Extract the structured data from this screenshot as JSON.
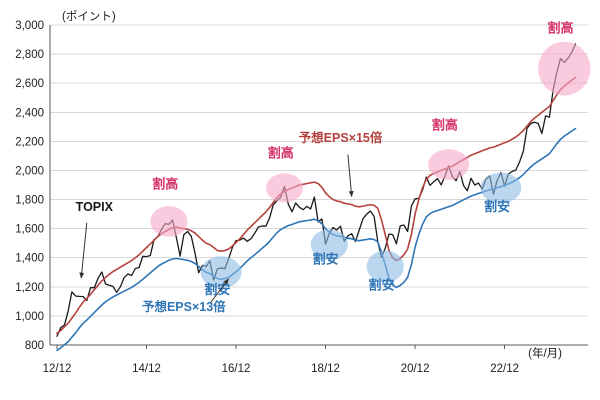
{
  "chart_data": {
    "type": "line",
    "title": "",
    "y_unit_label": "(ポイント)",
    "x_unit_label": "(年/月)",
    "x_start": "12/12",
    "frequency": "monthly",
    "ylim": [
      800,
      3000
    ],
    "xlim_months": [
      0,
      141
    ],
    "grid": "horizontal",
    "legend_position": "none",
    "yticks": [
      {
        "v": 800,
        "label": "800"
      },
      {
        "v": 1000,
        "label": "1,000"
      },
      {
        "v": 1200,
        "label": "1,200"
      },
      {
        "v": 1400,
        "label": "1,400"
      },
      {
        "v": 1600,
        "label": "1,600"
      },
      {
        "v": 1800,
        "label": "1,800"
      },
      {
        "v": 2000,
        "label": "2,000"
      },
      {
        "v": 2200,
        "label": "2,200"
      },
      {
        "v": 2400,
        "label": "2,400"
      },
      {
        "v": 2600,
        "label": "2,600"
      },
      {
        "v": 2800,
        "label": "2,800"
      },
      {
        "v": 3000,
        "label": "3,000"
      }
    ],
    "xticks": [
      {
        "m": 0,
        "label": "12/12"
      },
      {
        "m": 24,
        "label": "14/12"
      },
      {
        "m": 48,
        "label": "16/12"
      },
      {
        "m": 72,
        "label": "18/12"
      },
      {
        "m": 96,
        "label": "20/12"
      },
      {
        "m": 120,
        "label": "22/12"
      }
    ],
    "series": [
      {
        "id": "topix",
        "name": "TOPIX",
        "color": "#1a1a1a",
        "width": 1.3,
        "values": [
          860,
          919,
          938,
          1035,
          1165,
          1136,
          1134,
          1133,
          1106,
          1194,
          1194,
          1258,
          1302,
          1220,
          1211,
          1203,
          1162,
          1201,
          1263,
          1289,
          1278,
          1326,
          1333,
          1410,
          1408,
          1415,
          1524,
          1543,
          1593,
          1634,
          1630,
          1659,
          1537,
          1411,
          1558,
          1580,
          1547,
          1432,
          1297,
          1347,
          1340,
          1379,
          1246,
          1323,
          1330,
          1323,
          1393,
          1469,
          1518,
          1521,
          1535,
          1513,
          1531,
          1568,
          1611,
          1618,
          1617,
          1674,
          1765,
          1792,
          1818,
          1890,
          1768,
          1716,
          1777,
          1747,
          1730,
          1753,
          1735,
          1817,
          1646,
          1667,
          1494,
          1567,
          1607,
          1591,
          1617,
          1512,
          1551,
          1565,
          1511,
          1587,
          1667,
          1699,
          1721,
          1684,
          1510,
          1403,
          1464,
          1563,
          1559,
          1496,
          1618,
          1625,
          1580,
          1755,
          1805,
          1808,
          1864,
          1954,
          1898,
          1922,
          1944,
          1901,
          1961,
          2031,
          1958,
          1929,
          1992,
          1896,
          1860,
          1946,
          1900,
          1913,
          1871,
          1940,
          1963,
          1836,
          1930,
          1986,
          1892,
          1975,
          1993,
          2003,
          2057,
          2131,
          2289,
          2323,
          2332,
          2323,
          2254,
          2375,
          2366,
          2551,
          2675,
          2769,
          2743,
          2772,
          2810,
          2870
        ]
      },
      {
        "id": "eps15",
        "name": "予想EPS×15倍",
        "color": "#b5413e",
        "width": 1.6,
        "values": [
          880,
          900,
          925,
          950,
          985,
          1020,
          1060,
          1095,
          1120,
          1150,
          1180,
          1210,
          1240,
          1265,
          1285,
          1305,
          1320,
          1335,
          1350,
          1365,
          1380,
          1400,
          1420,
          1445,
          1470,
          1495,
          1520,
          1545,
          1565,
          1580,
          1595,
          1605,
          1610,
          1605,
          1600,
          1595,
          1585,
          1570,
          1545,
          1520,
          1500,
          1490,
          1470,
          1450,
          1445,
          1450,
          1460,
          1480,
          1505,
          1530,
          1560,
          1590,
          1615,
          1640,
          1665,
          1690,
          1715,
          1745,
          1780,
          1815,
          1840,
          1855,
          1870,
          1880,
          1890,
          1900,
          1905,
          1910,
          1915,
          1920,
          1910,
          1885,
          1845,
          1820,
          1800,
          1790,
          1785,
          1775,
          1770,
          1765,
          1755,
          1750,
          1755,
          1760,
          1765,
          1760,
          1740,
          1660,
          1560,
          1450,
          1400,
          1380,
          1395,
          1420,
          1460,
          1560,
          1700,
          1800,
          1880,
          1940,
          1965,
          1980,
          1990,
          2000,
          2010,
          2020,
          2030,
          2045,
          2060,
          2075,
          2090,
          2105,
          2115,
          2125,
          2135,
          2145,
          2155,
          2160,
          2170,
          2180,
          2190,
          2200,
          2215,
          2230,
          2250,
          2275,
          2305,
          2335,
          2360,
          2380,
          2400,
          2420,
          2440,
          2480,
          2520,
          2555,
          2580,
          2600,
          2620,
          2640
        ]
      },
      {
        "id": "eps13",
        "name": "予想EPS×13倍",
        "color": "#2e75b6",
        "width": 1.6,
        "values": [
          763,
          780,
          802,
          823,
          854,
          884,
          919,
          949,
          971,
          997,
          1023,
          1049,
          1075,
          1096,
          1114,
          1131,
          1144,
          1157,
          1170,
          1183,
          1196,
          1213,
          1231,
          1252,
          1274,
          1296,
          1317,
          1339,
          1356,
          1369,
          1382,
          1391,
          1395,
          1391,
          1387,
          1382,
          1374,
          1361,
          1339,
          1317,
          1300,
          1291,
          1274,
          1257,
          1252,
          1257,
          1265,
          1283,
          1304,
          1326,
          1352,
          1378,
          1400,
          1421,
          1443,
          1465,
          1486,
          1512,
          1543,
          1573,
          1595,
          1608,
          1621,
          1629,
          1638,
          1647,
          1651,
          1655,
          1660,
          1664,
          1655,
          1634,
          1599,
          1577,
          1560,
          1551,
          1547,
          1538,
          1534,
          1530,
          1521,
          1517,
          1521,
          1525,
          1530,
          1525,
          1508,
          1439,
          1352,
          1257,
          1213,
          1196,
          1209,
          1231,
          1265,
          1352,
          1473,
          1560,
          1629,
          1681,
          1703,
          1716,
          1725,
          1733,
          1742,
          1751,
          1759,
          1772,
          1785,
          1798,
          1811,
          1824,
          1833,
          1842,
          1850,
          1859,
          1868,
          1872,
          1881,
          1889,
          1898,
          1907,
          1920,
          1933,
          1950,
          1972,
          1998,
          2024,
          2045,
          2063,
          2080,
          2097,
          2115,
          2149,
          2184,
          2214,
          2236,
          2253,
          2271,
          2288
        ]
      }
    ],
    "annotations": {
      "circles": [
        {
          "kind": "over",
          "m": 30,
          "v": 1650,
          "rm": 5,
          "rv": 105
        },
        {
          "kind": "over",
          "m": 61,
          "v": 1880,
          "rm": 5,
          "rv": 100
        },
        {
          "kind": "over",
          "m": 105,
          "v": 2040,
          "rm": 5.5,
          "rv": 105
        },
        {
          "kind": "over",
          "m": 136,
          "v": 2700,
          "rm": 7,
          "rv": 185
        },
        {
          "kind": "under",
          "m": 44,
          "v": 1300,
          "rm": 5.5,
          "rv": 110
        },
        {
          "kind": "under",
          "m": 73,
          "v": 1490,
          "rm": 5,
          "rv": 105
        },
        {
          "kind": "under",
          "m": 88,
          "v": 1340,
          "rm": 5,
          "rv": 110
        },
        {
          "kind": "under",
          "m": 119,
          "v": 1880,
          "rm": 5.5,
          "rv": 105
        }
      ],
      "labels": [
        {
          "kind": "over",
          "text": "割高",
          "m": 29,
          "v": 1875
        },
        {
          "kind": "over",
          "text": "割高",
          "m": 60,
          "v": 2090
        },
        {
          "kind": "over",
          "text": "割高",
          "m": 104,
          "v": 2280
        },
        {
          "kind": "over",
          "text": "割高",
          "m": 135,
          "v": 2950
        },
        {
          "kind": "under",
          "text": "割安",
          "m": 43,
          "v": 1150
        },
        {
          "kind": "under",
          "text": "割安",
          "m": 72,
          "v": 1360
        },
        {
          "kind": "under",
          "text": "割安",
          "m": 87,
          "v": 1180
        },
        {
          "kind": "under",
          "text": "割安",
          "m": 118,
          "v": 1720
        }
      ],
      "callouts": [
        {
          "text": "TOPIX",
          "color": "#1a1a1a",
          "label": {
            "m": 10,
            "v": 1720
          },
          "from": {
            "m": 8,
            "v": 1640
          },
          "to": {
            "m": 6.5,
            "v": 1260
          }
        },
        {
          "text": "予想EPS×15倍",
          "color": "#b5413e",
          "label": {
            "m": 76,
            "v": 2195
          },
          "from": {
            "m": 78,
            "v": 2110
          },
          "to": {
            "m": 79,
            "v": 1820
          }
        },
        {
          "text": "予想EPS×13倍",
          "color": "#2e75b6",
          "label": {
            "m": 34,
            "v": 1035
          },
          "from": {
            "m": 41,
            "v": 1085
          },
          "to": {
            "m": 46,
            "v": 1255
          }
        }
      ]
    },
    "styles": {
      "grid_color": "#d9d9d9",
      "axis_color": "#595959",
      "tick_text_color": "#222222",
      "overvalued_fill": "rgba(247,166,201,0.6)",
      "overvalued_text": "#d6336c",
      "undervalued_fill": "rgba(141,189,229,0.6)",
      "undervalued_text": "#2e75b6",
      "arrow_color": "#333333"
    }
  }
}
